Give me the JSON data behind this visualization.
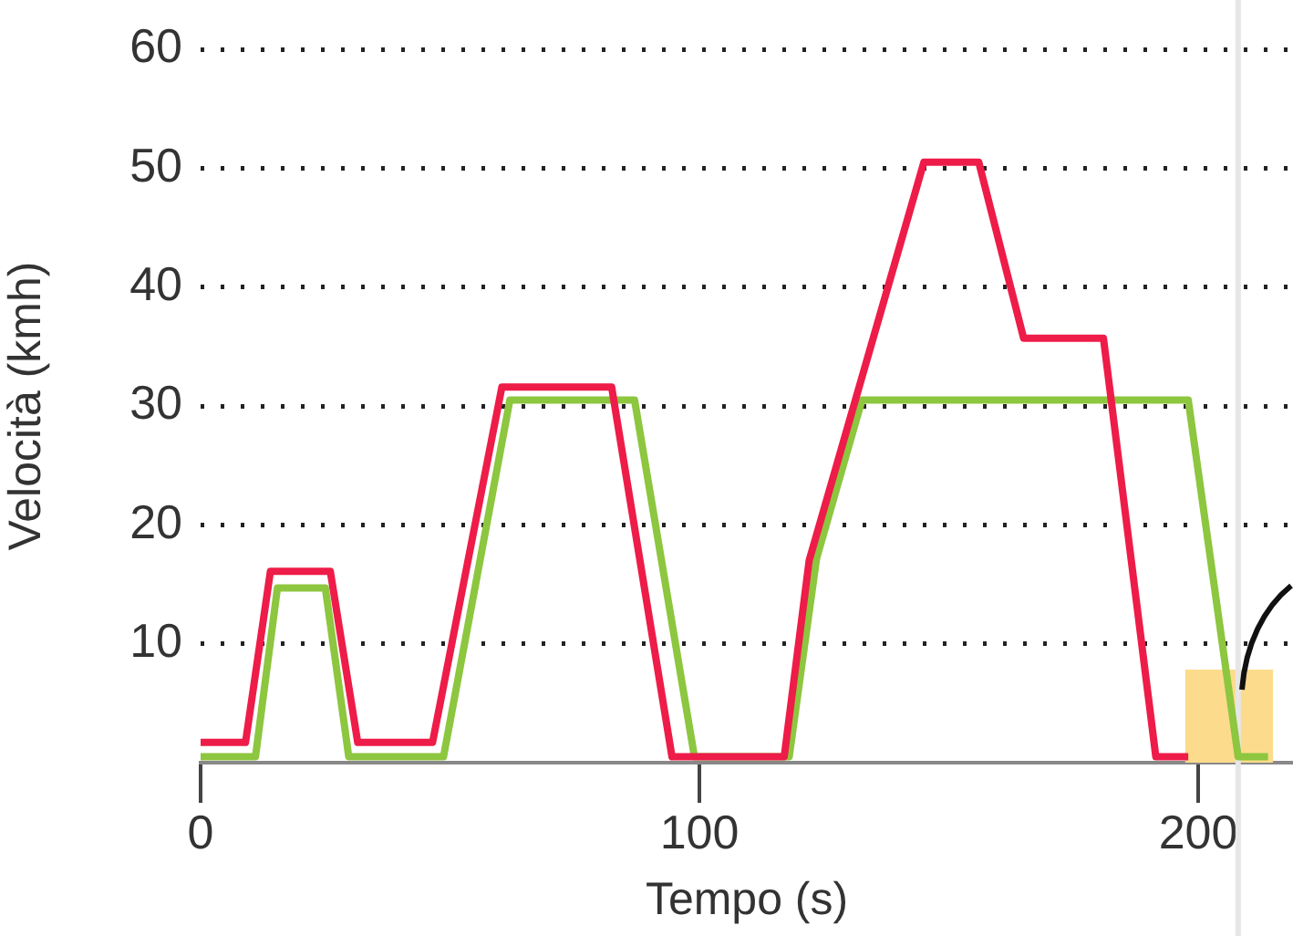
{
  "chart_data": {
    "type": "line",
    "xlabel": "Tempo (s)",
    "ylabel": "Velocità (kmh)",
    "xlim": [
      0,
      219
    ],
    "ylim": [
      0,
      60
    ],
    "xticks": [
      0,
      100,
      200
    ],
    "yticks": [
      10,
      20,
      30,
      40,
      50,
      60
    ],
    "grid": "y",
    "legend": false,
    "marker": "none",
    "line_style": "solid",
    "series": [
      {
        "color": "#ee1c48",
        "x": [
          0,
          9,
          14,
          26,
          31.5,
          46.5,
          60.4,
          82.4,
          94.5,
          117,
          122,
          145,
          156,
          165,
          181,
          191.5,
          198
        ],
        "values": [
          1.7,
          1.7,
          16.1,
          16.1,
          1.7,
          1.7,
          31.6,
          31.6,
          0.5,
          0.5,
          17,
          50.5,
          50.5,
          35.7,
          35.7,
          0.5,
          0.5
        ]
      },
      {
        "color": "#8dc63f",
        "x": [
          0,
          11,
          15.4,
          25,
          29.7,
          48.7,
          62,
          87,
          99,
          118,
          123.5,
          132.6,
          198,
          208,
          214
        ],
        "values": [
          0.5,
          0.5,
          14.7,
          14.7,
          0.5,
          0.5,
          30.5,
          30.5,
          0.5,
          0.5,
          17.2,
          30.5,
          30.5,
          0.5,
          0.5
        ]
      }
    ],
    "ref_lines": [
      {
        "axis": "x",
        "value": 208,
        "color": "#e6e6e6"
      }
    ],
    "bands": [
      {
        "axis": "x",
        "from": 197.4,
        "to": 215,
        "color": "#fddb8c"
      }
    ]
  }
}
